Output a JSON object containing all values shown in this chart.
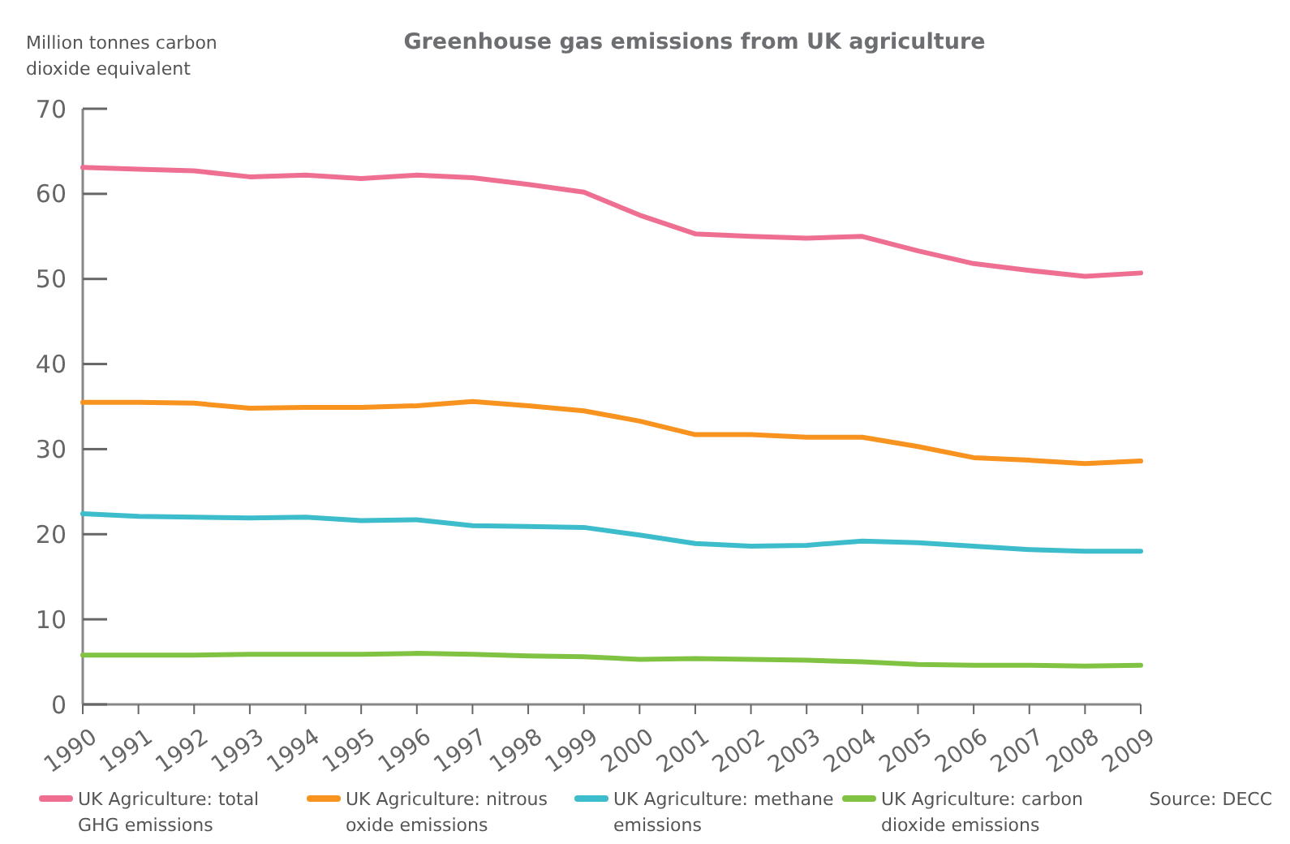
{
  "chart_data": {
    "type": "line",
    "title": "Greenhouse gas emissions from UK agriculture",
    "ylabel": "Million tonnes carbon dioxide equivalent",
    "x": [
      1990,
      1991,
      1992,
      1993,
      1994,
      1995,
      1996,
      1997,
      1998,
      1999,
      2000,
      2001,
      2002,
      2003,
      2004,
      2005,
      2006,
      2007,
      2008,
      2009
    ],
    "xlim": [
      1990,
      2009
    ],
    "xticks": [
      1990,
      1991,
      1992,
      1993,
      1994,
      1995,
      1996,
      1997,
      1998,
      1999,
      2000,
      2001,
      2002,
      2003,
      2004,
      2005,
      2006,
      2007,
      2008,
      2009
    ],
    "ylim": [
      0,
      70
    ],
    "yticks": [
      0,
      10,
      20,
      30,
      40,
      50,
      60,
      70
    ],
    "series": [
      {
        "name": "UK Agriculture: total GHG emissions",
        "color": "#ef6f92",
        "values": [
          63.1,
          62.9,
          62.7,
          62.0,
          62.2,
          61.8,
          62.2,
          61.9,
          61.1,
          60.2,
          57.5,
          55.3,
          55.0,
          54.8,
          55.0,
          53.3,
          51.8,
          51.0,
          50.3,
          50.7
        ]
      },
      {
        "name": "UK Agriculture: nitrous oxide emissions",
        "color": "#f7931e",
        "values": [
          35.5,
          35.5,
          35.4,
          34.8,
          34.9,
          34.9,
          35.1,
          35.6,
          35.1,
          34.5,
          33.3,
          31.7,
          31.7,
          31.4,
          31.4,
          30.3,
          29.0,
          28.7,
          28.3,
          28.6
        ]
      },
      {
        "name": "UK Agriculture: methane emissions",
        "color": "#3dbccc",
        "values": [
          22.4,
          22.1,
          22.0,
          21.9,
          22.0,
          21.6,
          21.7,
          21.0,
          20.9,
          20.8,
          19.9,
          18.9,
          18.6,
          18.7,
          19.2,
          19.0,
          18.6,
          18.2,
          18.0,
          18.0
        ]
      },
      {
        "name": "UK Agriculture: carbon dioxide emissions",
        "color": "#80c342",
        "values": [
          5.8,
          5.8,
          5.8,
          5.9,
          5.9,
          5.9,
          6.0,
          5.9,
          5.7,
          5.6,
          5.3,
          5.4,
          5.3,
          5.2,
          5.0,
          4.7,
          4.6,
          4.6,
          4.5,
          4.6
        ]
      }
    ],
    "annotations": [
      "Source: DECC"
    ],
    "legend": "bottom",
    "grid": false,
    "marker": "none",
    "line_style": "solid"
  }
}
